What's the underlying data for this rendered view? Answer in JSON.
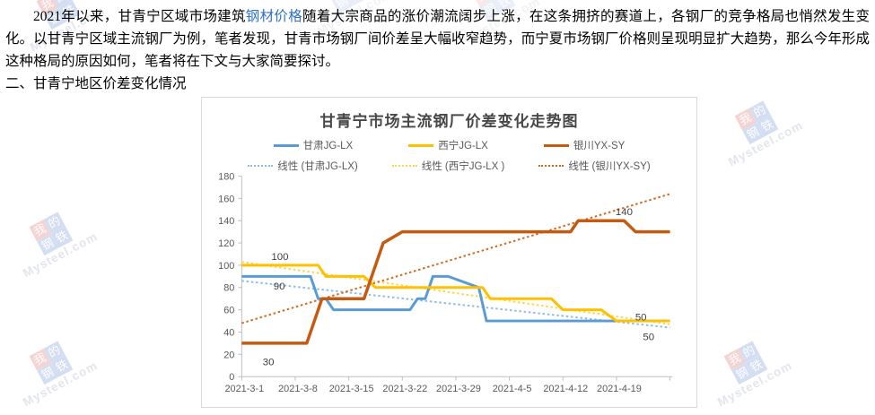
{
  "article": {
    "paragraph_before_link": "2021年以来，甘青宁区域市场建筑",
    "link_text": "钢材价格",
    "paragraph_after_link": "随着大宗商品的涨价潮流阔步上涨，在这条拥挤的赛道上，各钢厂的竞争格局也悄然发生变化。以甘青宁区域主流钢厂为例，笔者发现，甘青市场钢厂间价差呈大幅收窄趋势，而宁夏市场钢厂价格则呈现明显扩大趋势，那么今年形成这种格局的原因如何，笔者将在下文与大家简要探讨。",
    "section_heading": "二、甘青宁地区价差变化情况"
  },
  "watermark": {
    "logo_chars": [
      "我",
      "的",
      "钢",
      "铁"
    ],
    "text": "Mysteel.com"
  },
  "chart_data": {
    "type": "line",
    "title": "甘青宁市场主流钢厂价差变化走势图",
    "x_tick_labels": [
      "2021-3-1",
      "2021-3-8",
      "2021-3-15",
      "2021-3-22",
      "2021-3-29",
      "2021-4-5",
      "2021-4-12",
      "2021-4-19"
    ],
    "x_axis_note": "daily data, day 0 = 2021-3-1, axis extends to 2021-4-26",
    "x_range_days": [
      0,
      56
    ],
    "ylim": [
      0,
      180
    ],
    "y_tick_step": 20,
    "grid": false,
    "legend_position": "top",
    "axis_color": "#bfbfbf",
    "tick_label_color": "#595959",
    "data_label_color": "#404040",
    "series": [
      {
        "name": "甘肃JG-LX",
        "color": "#5B9BD5",
        "style": "solid",
        "width": 3,
        "points": [
          [
            0,
            90
          ],
          [
            9,
            90
          ],
          [
            10,
            70
          ],
          [
            11,
            70
          ],
          [
            12,
            60
          ],
          [
            22,
            60
          ],
          [
            23,
            70
          ],
          [
            24,
            70
          ],
          [
            25,
            90
          ],
          [
            27,
            90
          ],
          [
            31,
            80
          ],
          [
            32,
            50
          ],
          [
            56,
            50
          ]
        ]
      },
      {
        "name": "西宁JG-LX",
        "color": "#FFC000",
        "style": "solid",
        "width": 3,
        "points": [
          [
            0,
            100
          ],
          [
            10,
            100
          ],
          [
            11,
            90
          ],
          [
            16,
            90
          ],
          [
            17.5,
            80
          ],
          [
            31.5,
            80
          ],
          [
            32.5,
            70
          ],
          [
            40.5,
            70
          ],
          [
            42,
            60
          ],
          [
            47,
            60
          ],
          [
            49,
            50
          ],
          [
            56,
            50
          ]
        ]
      },
      {
        "name": "银川YX-SY",
        "color": "#C55A11",
        "style": "solid",
        "width": 3.5,
        "points": [
          [
            0,
            30
          ],
          [
            8.5,
            30
          ],
          [
            10.5,
            70
          ],
          [
            16,
            70
          ],
          [
            18.5,
            120
          ],
          [
            21,
            130
          ],
          [
            43,
            130
          ],
          [
            44,
            140
          ],
          [
            50,
            140
          ],
          [
            51.5,
            130
          ],
          [
            56,
            130
          ]
        ]
      },
      {
        "name": "线性 (甘肃JG-LX)",
        "color": "#8FBCE6",
        "style": "dotted",
        "width": 2,
        "points": [
          [
            0,
            86
          ],
          [
            56,
            44
          ]
        ]
      },
      {
        "name": "线性 (西宁JG-LX )",
        "color": "#FFD34F",
        "style": "dotted",
        "width": 2,
        "points": [
          [
            0,
            103
          ],
          [
            56,
            47
          ]
        ]
      },
      {
        "name": "线性 (银川YX-SY)",
        "color": "#D2691E",
        "style": "dotted",
        "width": 2,
        "points": [
          [
            0,
            48
          ],
          [
            56,
            164
          ]
        ]
      }
    ],
    "data_labels": [
      {
        "text": "100",
        "day": 5.0,
        "value": 108
      },
      {
        "text": "90",
        "day": 4.9,
        "value": 81.5
      },
      {
        "text": "30",
        "day": 3.5,
        "value": 13.5
      },
      {
        "text": "140",
        "day": 50.0,
        "value": 148
      },
      {
        "text": "50",
        "day": 52.2,
        "value": 53.5
      },
      {
        "text": "50",
        "day": 53.2,
        "value": 36
      }
    ]
  }
}
